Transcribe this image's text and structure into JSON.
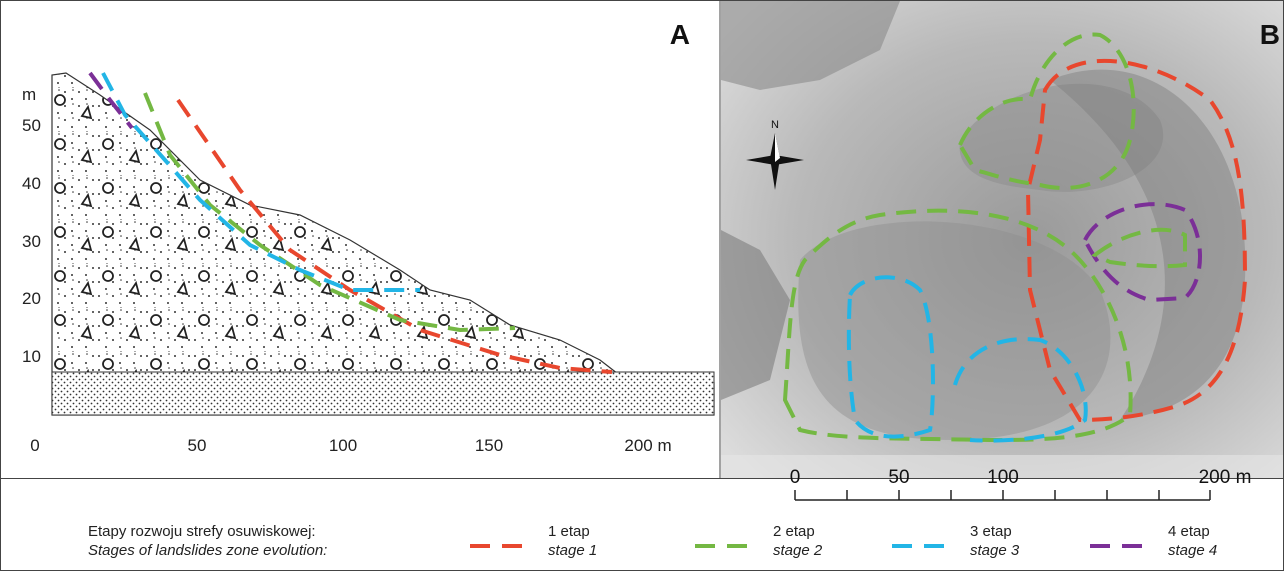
{
  "panel_a": {
    "label": "A",
    "y_unit": "m",
    "y_ticks": [
      50,
      40,
      30,
      20,
      10
    ],
    "x_ticks": [
      0,
      50,
      100,
      150,
      "200 m"
    ]
  },
  "panel_b": {
    "label": "B",
    "north": "N",
    "scale_ticks": [
      0,
      50,
      100,
      "200 m"
    ]
  },
  "legend": {
    "title_pl": "Etapy rozwoju strefy osuwiskowej:",
    "title_en": "Stages of landslides zone evolution:",
    "items": [
      {
        "label_pl": "1 etap",
        "label_en": "stage 1",
        "color": "#e8472e"
      },
      {
        "label_pl": "2 etap",
        "label_en": "stage 2",
        "color": "#74b843"
      },
      {
        "label_pl": "3 etap",
        "label_en": "stage 3",
        "color": "#22b5e6"
      },
      {
        "label_pl": "4 etap",
        "label_en": "stage 4",
        "color": "#7b2f97"
      }
    ]
  }
}
